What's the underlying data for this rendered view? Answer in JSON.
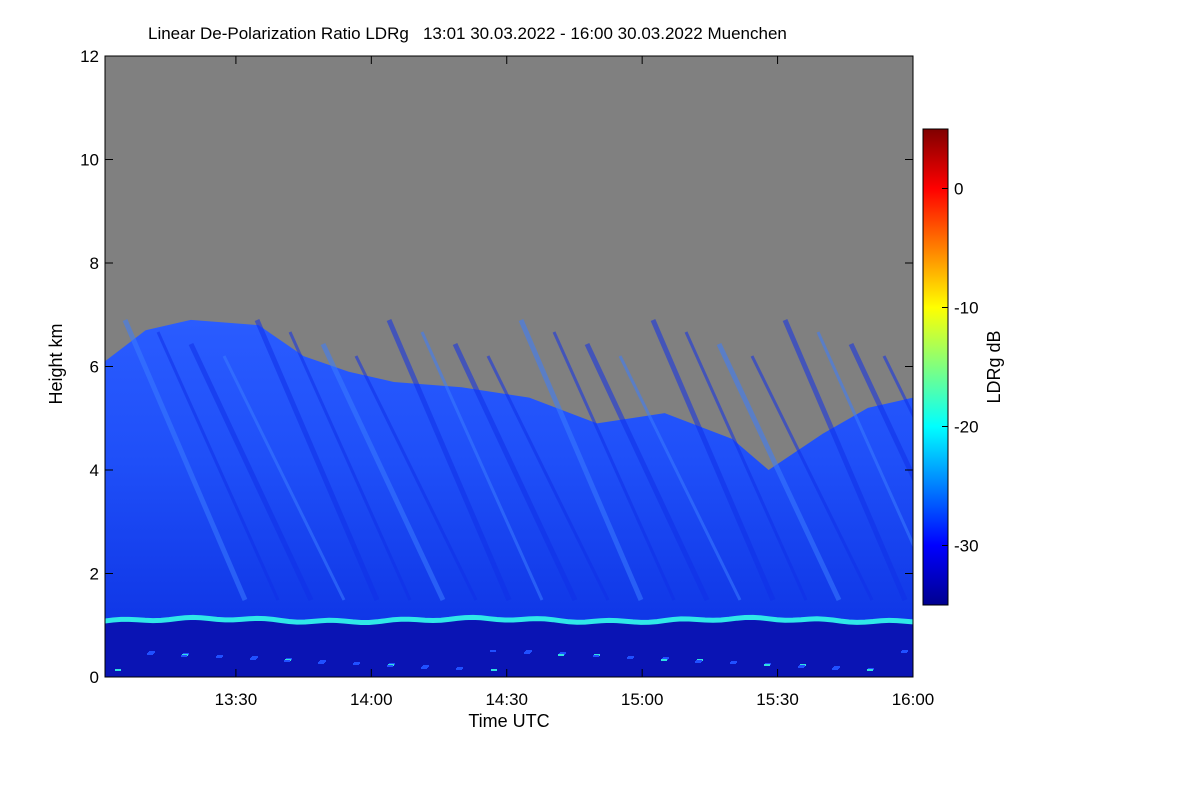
{
  "chart_data": {
    "type": "heatmap",
    "title": "Linear De-Polarization Ratio LDRg   13:01 30.03.2022 - 16:00 30.03.2022 Muenchen",
    "xlabel": "Time UTC",
    "ylabel": "Height km",
    "xlim": [
      "13:01",
      "16:00"
    ],
    "ylim": [
      0,
      12
    ],
    "x_ticks": [
      "13:30",
      "14:00",
      "14:30",
      "15:00",
      "15:30",
      "16:00"
    ],
    "y_ticks": [
      "0",
      "2",
      "4",
      "6",
      "8",
      "10",
      "12"
    ],
    "colorbar": {
      "label": "LDRg dB",
      "range": [
        -35,
        5
      ],
      "ticks": [
        "0",
        "-10",
        "-20",
        "-30"
      ],
      "colormap": "jet"
    },
    "no_data_color": "#808080",
    "features": {
      "boundary_layer_top_km": 1.1,
      "boundary_layer_ldr_db": -21,
      "boundary_layer_below_ldr_db": -32,
      "cirrus_ldr_db": -28,
      "cloud_top_km": [
        {
          "time": "13:01",
          "height": 6.1
        },
        {
          "time": "13:10",
          "height": 6.7
        },
        {
          "time": "13:20",
          "height": 6.9
        },
        {
          "time": "13:35",
          "height": 6.8
        },
        {
          "time": "13:45",
          "height": 6.2
        },
        {
          "time": "13:55",
          "height": 5.9
        },
        {
          "time": "14:05",
          "height": 5.7
        },
        {
          "time": "14:20",
          "height": 5.6
        },
        {
          "time": "14:35",
          "height": 5.4
        },
        {
          "time": "14:50",
          "height": 4.9
        },
        {
          "time": "15:05",
          "height": 5.1
        },
        {
          "time": "15:20",
          "height": 4.6
        },
        {
          "time": "15:28",
          "height": 4.0
        },
        {
          "time": "15:40",
          "height": 4.7
        },
        {
          "time": "15:50",
          "height": 5.2
        },
        {
          "time": "16:00",
          "height": 5.4
        }
      ]
    }
  }
}
